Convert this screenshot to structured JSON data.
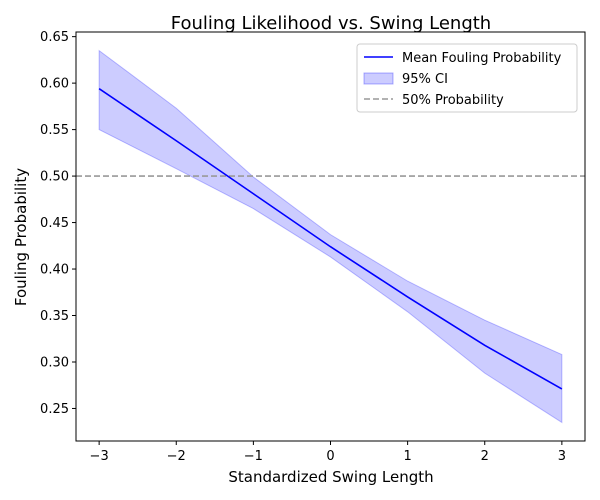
{
  "chart_data": {
    "type": "line",
    "title": "Fouling Likelihood vs. Swing Length",
    "xlabel": "Standardized Swing Length",
    "ylabel": "Fouling Probability",
    "xlim": [
      -3.3,
      3.3
    ],
    "ylim": [
      0.215,
      0.655
    ],
    "x_ticks": [
      -3,
      -2,
      -1,
      0,
      1,
      2,
      3
    ],
    "x_tick_labels": [
      "−3",
      "−2",
      "−1",
      "0",
      "1",
      "2",
      "3"
    ],
    "y_ticks": [
      0.25,
      0.3,
      0.35,
      0.4,
      0.45,
      0.5,
      0.55,
      0.6,
      0.65
    ],
    "y_tick_labels": [
      "0.25",
      "0.30",
      "0.35",
      "0.40",
      "0.45",
      "0.50",
      "0.55",
      "0.60",
      "0.65"
    ],
    "grid": false,
    "legend_position": "top-right",
    "series": [
      {
        "name": "Mean Fouling Probability",
        "kind": "line",
        "color": "#0000ff",
        "x": [
          -3,
          -2,
          -1,
          0,
          1,
          2,
          3
        ],
        "values": [
          0.594,
          0.538,
          0.481,
          0.424,
          0.37,
          0.318,
          0.271
        ]
      },
      {
        "name": "95% CI",
        "kind": "band",
        "color": "#0000ff",
        "fill_opacity": 0.2,
        "x": [
          -3,
          -2,
          -1,
          0,
          1,
          2,
          3
        ],
        "lower": [
          0.55,
          0.508,
          0.465,
          0.413,
          0.354,
          0.288,
          0.235
        ],
        "upper": [
          0.635,
          0.573,
          0.499,
          0.437,
          0.387,
          0.345,
          0.308
        ]
      },
      {
        "name": "50% Probability",
        "kind": "hline",
        "color": "#999999",
        "y": 0.5
      }
    ]
  }
}
